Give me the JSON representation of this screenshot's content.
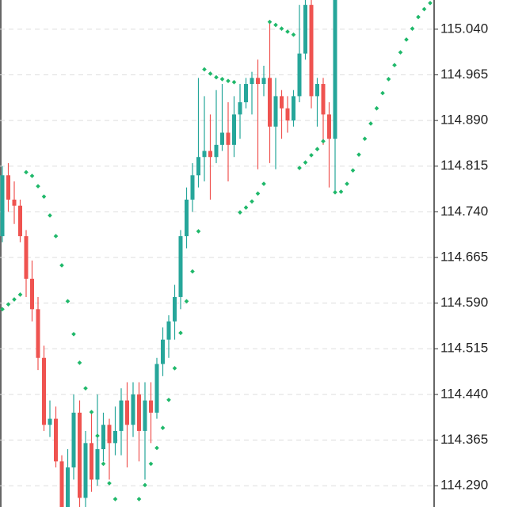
{
  "chart_data": {
    "type": "candlestick",
    "up_color": "#26a69a",
    "down_color": "#ef5350",
    "sar_color": "#1fb86a",
    "ylim": [
      114.255,
      115.088
    ],
    "yticks": [
      {
        "value": 115.04,
        "label": "115.040"
      },
      114.965,
      {
        "value": 114.89,
        "label": "114.890"
      },
      114.815,
      {
        "value": 114.74,
        "label": "114.740"
      },
      114.665,
      {
        "value": 114.59,
        "label": "114.590"
      },
      114.515,
      {
        "value": 114.44,
        "label": "114.440"
      },
      114.365,
      {
        "value": 114.29,
        "label": "114.290"
      }
    ],
    "grid": true,
    "open": [
      114.7,
      114.8,
      114.76,
      114.75,
      114.7,
      114.63,
      114.58,
      114.5,
      114.39,
      114.4,
      114.33,
      114.25,
      114.32,
      114.41,
      114.27,
      114.36,
      114.3,
      114.35,
      114.39,
      114.36,
      114.38,
      114.43,
      114.39,
      114.44,
      114.38,
      114.43,
      114.41,
      114.49,
      114.53,
      114.56,
      114.6,
      114.7,
      114.76,
      114.8,
      114.83,
      114.84,
      114.83,
      114.85,
      114.87,
      114.85,
      114.9,
      114.92,
      114.95,
      114.96,
      114.95,
      114.96,
      114.88,
      114.93,
      114.91,
      114.89,
      114.93,
      115.0,
      115.08,
      114.93,
      114.95,
      114.9,
      114.86,
      null,
      null,
      null,
      null,
      null,
      null,
      null,
      null,
      null,
      null,
      null,
      null,
      null,
      null,
      null,
      null
    ],
    "high": [
      114.815,
      114.82,
      114.79,
      114.76,
      114.71,
      114.66,
      114.6,
      114.52,
      114.43,
      114.42,
      114.34,
      114.35,
      114.44,
      114.43,
      114.38,
      114.41,
      114.44,
      114.41,
      114.4,
      114.42,
      114.45,
      114.46,
      114.46,
      114.46,
      114.46,
      114.46,
      114.5,
      114.55,
      114.57,
      114.62,
      114.71,
      114.78,
      114.82,
      114.96,
      114.93,
      114.9,
      114.94,
      114.95,
      114.92,
      114.93,
      114.95,
      114.96,
      114.97,
      114.99,
      114.98,
      115.05,
      114.96,
      114.94,
      114.93,
      114.94,
      115.08,
      115.088,
      115.088,
      114.96,
      114.96,
      114.92,
      115.088,
      null,
      null,
      null,
      null,
      null,
      null,
      null,
      null,
      null,
      null,
      null,
      null,
      null,
      null,
      null,
      null
    ],
    "low": [
      114.69,
      114.74,
      114.72,
      114.69,
      114.6,
      114.56,
      114.48,
      114.38,
      114.37,
      114.32,
      114.23,
      114.22,
      114.3,
      114.25,
      114.25,
      114.28,
      114.29,
      114.33,
      114.3,
      114.34,
      114.34,
      114.32,
      114.37,
      114.33,
      114.3,
      114.36,
      114.4,
      114.47,
      114.5,
      114.53,
      114.58,
      114.68,
      114.74,
      114.78,
      114.79,
      114.76,
      114.82,
      114.84,
      114.79,
      114.83,
      114.86,
      114.91,
      114.9,
      114.81,
      114.93,
      114.82,
      114.81,
      114.86,
      114.87,
      114.88,
      114.92,
      114.99,
      114.91,
      114.88,
      114.85,
      114.78,
      114.77,
      null,
      null,
      null,
      null,
      null,
      null,
      null,
      null,
      null,
      null,
      null,
      null,
      null,
      null,
      null,
      null
    ],
    "close": [
      114.8,
      114.76,
      114.75,
      114.7,
      114.63,
      114.58,
      114.5,
      114.39,
      114.4,
      114.33,
      114.25,
      114.32,
      114.41,
      114.27,
      114.36,
      114.3,
      114.35,
      114.39,
      114.36,
      114.38,
      114.43,
      114.39,
      114.44,
      114.38,
      114.43,
      114.41,
      114.49,
      114.53,
      114.56,
      114.6,
      114.7,
      114.76,
      114.8,
      114.83,
      114.84,
      114.83,
      114.85,
      114.87,
      114.85,
      114.9,
      114.92,
      114.95,
      114.96,
      114.95,
      114.96,
      114.88,
      114.93,
      114.91,
      114.89,
      114.93,
      115.0,
      115.08,
      114.93,
      114.95,
      114.9,
      114.86,
      115.088,
      null,
      null,
      null,
      null,
      null,
      null,
      null,
      null,
      null,
      null,
      null,
      null,
      null,
      null,
      null,
      null
    ],
    "sar": [
      114.58,
      114.588,
      114.596,
      114.604,
      114.805,
      114.799,
      114.782,
      114.765,
      114.734,
      114.7,
      114.652,
      114.593,
      114.539,
      114.492,
      114.45,
      114.411,
      114.372,
      114.326,
      114.294,
      114.268,
      null,
      null,
      null,
      114.268,
      114.291,
      114.326,
      114.352,
      114.385,
      114.431,
      114.483,
      114.541,
      114.593,
      114.642,
      114.708,
      114.974,
      114.967,
      114.961,
      114.958,
      114.955,
      114.953,
      114.739,
      114.747,
      114.757,
      114.77,
      114.786,
      115.052,
      115.047,
      115.041,
      115.036,
      115.031,
      114.812,
      114.821,
      114.833,
      114.843,
      114.856,
      null,
      114.772,
      114.773,
      114.786,
      114.808,
      114.834,
      114.86,
      114.885,
      114.91,
      114.935,
      114.958,
      114.981,
      115.002,
      115.023,
      115.041,
      115.06,
      115.073,
      115.083
    ]
  }
}
